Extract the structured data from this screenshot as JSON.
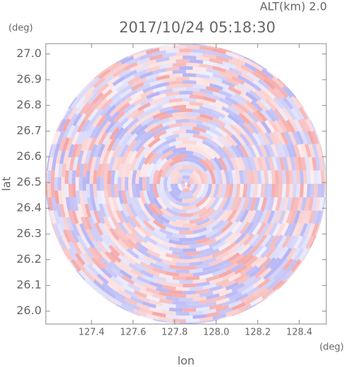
{
  "chart_data": {
    "type": "radar-ppi",
    "title": "2017/10/24 05:18:30",
    "subtitle": "ALT(km) 2.0",
    "x_label": "lon",
    "y_label": "lat",
    "x_unit": "(deg)",
    "y_unit": "(deg)",
    "xlim": [
      127.18,
      128.53
    ],
    "ylim": [
      25.95,
      27.04
    ],
    "xticks": [
      127.4,
      127.6,
      127.8,
      {
        "value": 128,
        "label": "128.0"
      },
      128.2,
      128.4
    ],
    "yticks": [
      {
        "value": 26,
        "label": "26.0"
      },
      26.1,
      26.2,
      26.3,
      26.4,
      26.5,
      26.6,
      26.7,
      26.8,
      26.9,
      {
        "value": 27,
        "label": "27.0"
      }
    ],
    "colors": [
      "#f5a6a6",
      "#b4b4f5"
    ]
  }
}
